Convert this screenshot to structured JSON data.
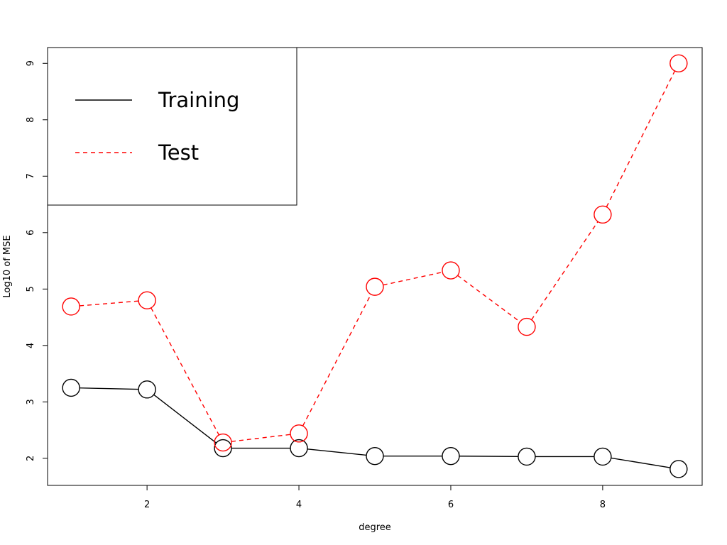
{
  "chart_data": {
    "type": "line",
    "xlabel": "degree",
    "ylabel": "Log10 of MSE",
    "xlim": [
      0.69,
      9.31
    ],
    "ylim": [
      1.52,
      9.28
    ],
    "x_ticks": [
      2,
      4,
      6,
      8
    ],
    "y_ticks": [
      2,
      3,
      4,
      5,
      6,
      7,
      8,
      9
    ],
    "grid": false,
    "legend_position": "top-left",
    "x": [
      1,
      2,
      3,
      4,
      5,
      6,
      7,
      8,
      9
    ],
    "series": [
      {
        "name": "Training",
        "color": "#000000",
        "dash": "solid",
        "values": [
          3.25,
          3.22,
          2.18,
          2.18,
          2.04,
          2.04,
          2.03,
          2.03,
          1.81
        ]
      },
      {
        "name": "Test",
        "color": "#ff0000",
        "dash": "dashed",
        "values": [
          4.69,
          4.8,
          2.28,
          2.44,
          5.04,
          5.33,
          4.33,
          6.32,
          9.0
        ]
      }
    ]
  }
}
